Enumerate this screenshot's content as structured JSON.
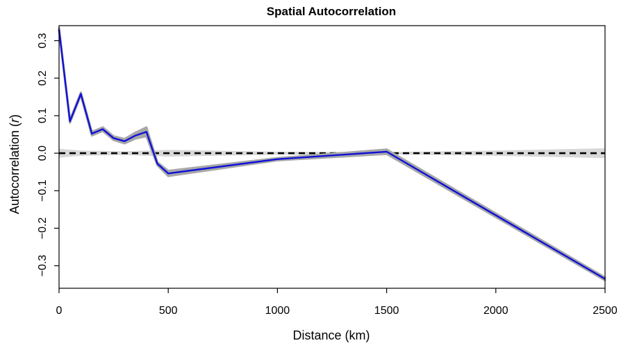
{
  "chart_data": {
    "type": "line",
    "title": "Spatial Autocorrelation",
    "xlabel": "Distance (km)",
    "ylabel_main": "Autocorrelation (",
    "ylabel_var": "r",
    "ylabel_close": ")",
    "xlim": [
      0,
      2500
    ],
    "ylim": [
      -0.36,
      0.34
    ],
    "xticks": [
      0,
      500,
      1000,
      1500,
      2000,
      2500
    ],
    "xtick_labels": [
      "0",
      "500",
      "1000",
      "1500",
      "2000",
      "2500"
    ],
    "yticks": [
      -0.3,
      -0.2,
      -0.1,
      0.0,
      0.1,
      0.2,
      0.3
    ],
    "ytick_labels": [
      "−0.3",
      "−0.2",
      "−0.1",
      "0.0",
      "0.1",
      "0.2",
      "0.3"
    ],
    "grid": false,
    "legend": "none",
    "series": [
      {
        "x": [
          0,
          50,
          100,
          150,
          200,
          250,
          300,
          350,
          400,
          450,
          500,
          1000,
          1500,
          2500
        ],
        "y": [
          0.33,
          0.085,
          0.158,
          0.052,
          0.064,
          0.04,
          0.032,
          0.047,
          0.057,
          -0.028,
          -0.054,
          -0.016,
          0.004,
          -0.335
        ],
        "color": "#1010d8",
        "band_halfwidth": [
          0.004,
          0.004,
          0.004,
          0.005,
          0.005,
          0.005,
          0.006,
          0.008,
          0.012,
          0.004,
          0.007,
          0.003,
          0.006,
          0.004
        ],
        "band_color": "#a8a8a8"
      }
    ],
    "null_envelope": {
      "x": [
        0,
        100,
        200,
        300,
        400,
        500,
        1000,
        1500,
        2000,
        2500
      ],
      "upper": [
        0.012,
        0.007,
        0.006,
        0.005,
        0.007,
        0.009,
        0.004,
        0.003,
        0.007,
        0.013
      ],
      "lower": [
        -0.012,
        -0.007,
        -0.006,
        -0.005,
        -0.007,
        -0.009,
        -0.004,
        -0.003,
        -0.007,
        -0.013
      ],
      "color": "#d8d8d8"
    },
    "reference_line": {
      "y": 0,
      "style": "dashed",
      "color": "#000000"
    }
  }
}
